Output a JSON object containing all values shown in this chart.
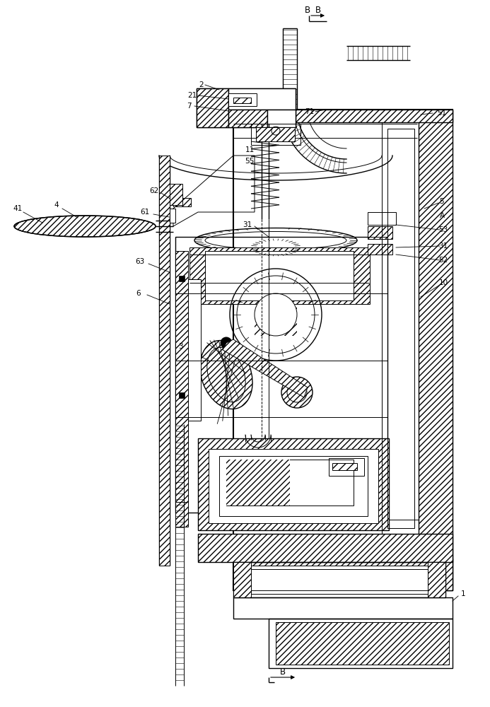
{
  "bg_color": "#ffffff",
  "line_color": "#000000",
  "labels": {
    "B_top": "B",
    "B_bottom": "B",
    "n1": "1",
    "n2": "2",
    "n3": "3",
    "n4": "4",
    "n5": "5",
    "n6": "6",
    "n7": "7",
    "n10": "10",
    "n11": "11",
    "n21": "21",
    "n31": "31",
    "n41": "41",
    "n51": "51",
    "n52": "52",
    "n53": "53",
    "n55": "55",
    "n61": "61",
    "n62": "62",
    "n63": "63",
    "n71": "71",
    "nA": "A"
  }
}
